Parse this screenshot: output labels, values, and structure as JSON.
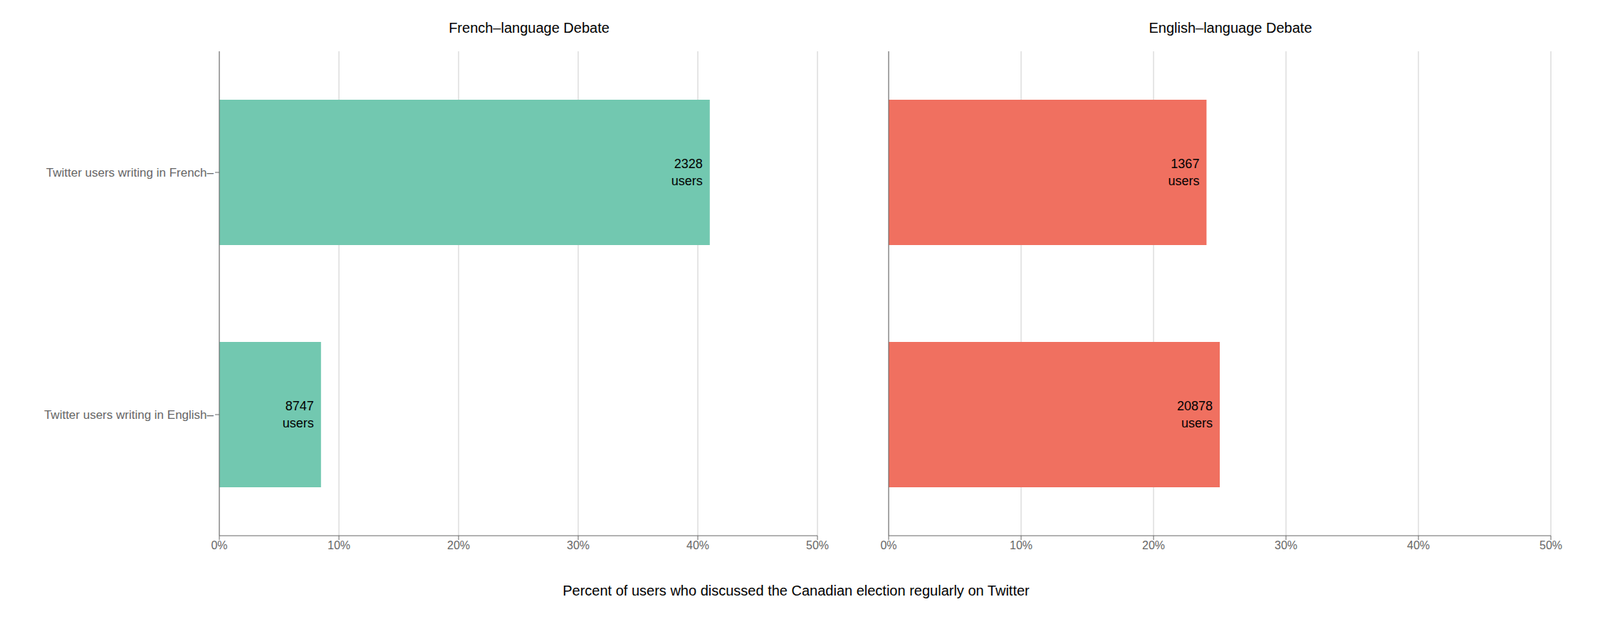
{
  "chart_data": [
    {
      "type": "bar",
      "orientation": "horizontal",
      "title": "French–language Debate",
      "categories": [
        "Twitter users writing in French–",
        "Twitter users writing in English–"
      ],
      "values": [
        41.0,
        8.5
      ],
      "counts": [
        2328,
        8747
      ],
      "count_label": "users",
      "color": "#72c8b0",
      "xlim": [
        0,
        50
      ],
      "xticks": [
        {
          "value": 0,
          "label": "0%"
        },
        {
          "value": 10,
          "label": "10%"
        },
        {
          "value": 20,
          "label": "20%"
        },
        {
          "value": 30,
          "label": "30%"
        },
        {
          "value": 40,
          "label": "40%"
        },
        {
          "value": 50,
          "label": "50%"
        }
      ],
      "grid": true
    },
    {
      "type": "bar",
      "orientation": "horizontal",
      "title": "English–language Debate",
      "categories": [
        null,
        null
      ],
      "values": [
        24.0,
        25.0
      ],
      "counts": [
        1367,
        20878
      ],
      "count_label": "users",
      "color": "#f07060",
      "xlim": [
        0,
        50
      ],
      "xticks": [
        {
          "value": 0,
          "label": "0%"
        },
        {
          "value": 10,
          "label": "10%"
        },
        {
          "value": 20,
          "label": "20%"
        },
        {
          "value": 30,
          "label": "30%"
        },
        {
          "value": 40,
          "label": "40%"
        },
        {
          "value": 50,
          "label": "50%"
        }
      ],
      "grid": true,
      "tick_labels": "x"
    }
  ],
  "xlabel": "Percent of users who discussed the Canadian election regularly on Twitter"
}
